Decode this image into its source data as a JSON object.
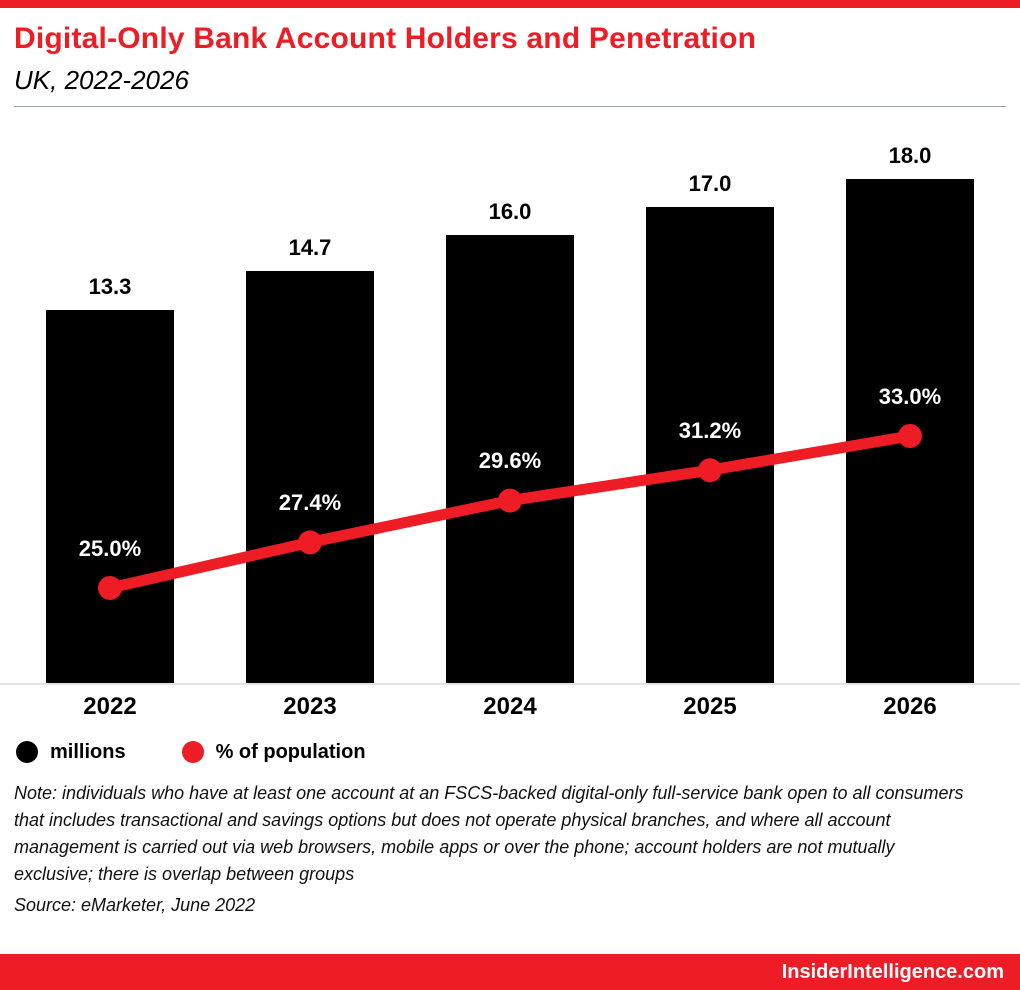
{
  "accent_color": "#ee1c25",
  "header": {
    "title": "Digital-Only Bank Account Holders and Penetration",
    "subtitle": "UK, 2022-2026"
  },
  "chart_data": {
    "type": "bar+line",
    "categories": [
      "2022",
      "2023",
      "2024",
      "2025",
      "2026"
    ],
    "series": [
      {
        "name": "millions",
        "type": "bar",
        "color": "#000000",
        "values": [
          13.3,
          14.7,
          16.0,
          17.0,
          18.0
        ],
        "labels": [
          "13.3",
          "14.7",
          "16.0",
          "17.0",
          "18.0"
        ]
      },
      {
        "name": "% of population",
        "type": "line",
        "color": "#ee1c25",
        "values": [
          25.0,
          27.4,
          29.6,
          31.2,
          33.0
        ],
        "labels": [
          "25.0%",
          "27.4%",
          "29.6%",
          "31.2%",
          "33.0%"
        ]
      }
    ],
    "bar_axis_max": 20,
    "grid": false,
    "legend_position": "bottom-left",
    "legend": [
      {
        "label": "millions",
        "color": "#000000"
      },
      {
        "label": "% of population",
        "color": "#ee1c25"
      }
    ]
  },
  "footer": {
    "note": "Note: individuals who have at least one account at an FSCS-backed digital-only full-service bank open to all consumers that includes transactional and savings options but does not operate physical branches, and where all account management is carried out via web browsers, mobile apps or over the phone; account holders are not mutually exclusive; there is overlap between groups",
    "source": "Source: eMarketer, June 2022",
    "brand": "InsiderIntelligence.com"
  }
}
